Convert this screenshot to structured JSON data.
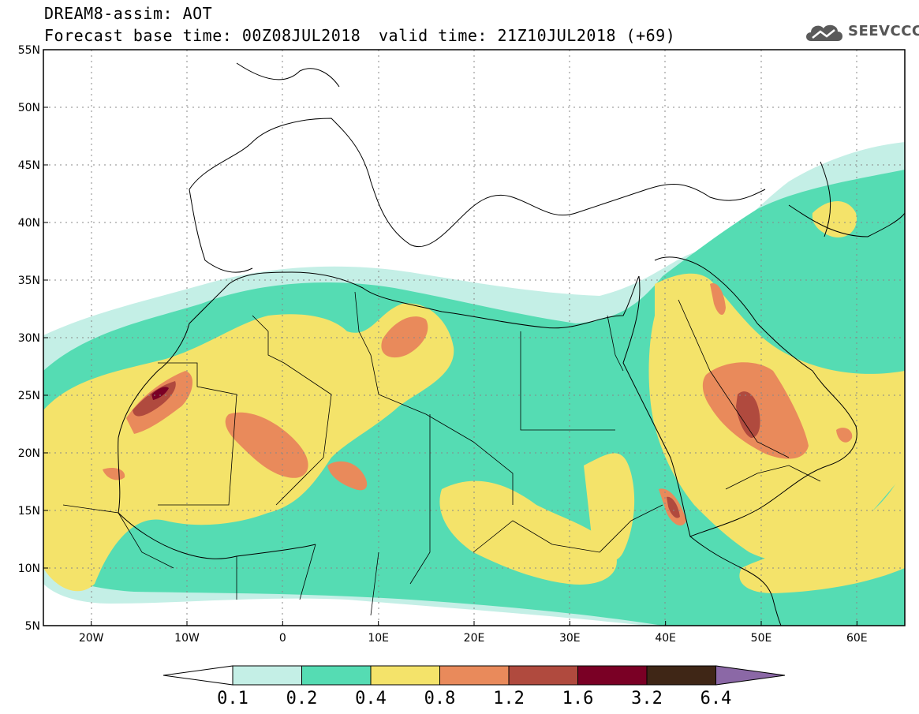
{
  "header": {
    "line1": "DREAM8-assim: AOT",
    "line2": "Forecast base time: 00Z08JUL2018",
    "line3": "valid time: 21Z10JUL2018 (+69)",
    "logo": "SEEVCCC"
  },
  "map": {
    "lon_range": [
      -25,
      65
    ],
    "lat_range": [
      5,
      55
    ],
    "x_ticks": [
      "20W",
      "10W",
      "0",
      "10E",
      "20E",
      "30E",
      "40E",
      "50E",
      "60E"
    ],
    "x_tick_values": [
      -20,
      -10,
      0,
      10,
      20,
      30,
      40,
      50,
      60
    ],
    "y_ticks": [
      "55N",
      "50N",
      "45N",
      "40N",
      "35N",
      "30N",
      "25N",
      "20N",
      "15N",
      "10N",
      "5N"
    ],
    "y_tick_values": [
      55,
      50,
      45,
      40,
      35,
      30,
      25,
      20,
      15,
      10,
      5
    ],
    "grid": "dotted"
  },
  "colorbar": {
    "labels": [
      "0.1",
      "0.2",
      "0.4",
      "0.8",
      "1.2",
      "1.6",
      "3.2",
      "6.4"
    ],
    "colors": [
      "#ffffff",
      "#c4efe6",
      "#55dcb3",
      "#f4e36a",
      "#e98a5b",
      "#b04a3e",
      "#7a0025",
      "#3f2616",
      "#8b68a6"
    ]
  }
}
